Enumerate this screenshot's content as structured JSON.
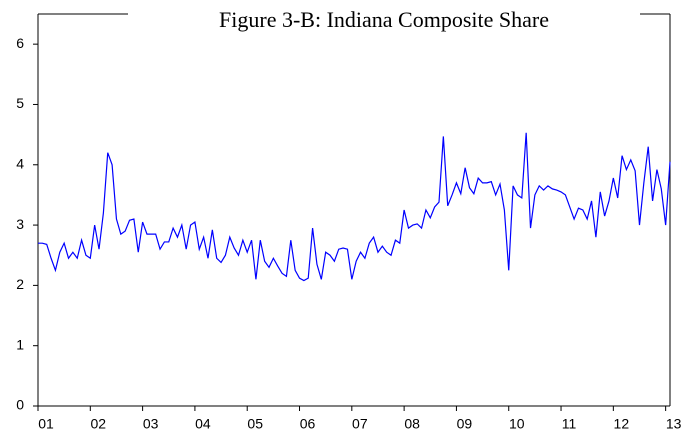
{
  "chart_data": {
    "type": "line",
    "title": "Figure 3-B: Indiana Composite Share",
    "categories": [
      "01",
      null,
      null,
      null,
      null,
      null,
      null,
      null,
      null,
      null,
      null,
      null,
      "02",
      null,
      null,
      null,
      null,
      null,
      null,
      null,
      null,
      null,
      null,
      null,
      "03",
      null,
      null,
      null,
      null,
      null,
      null,
      null,
      null,
      null,
      null,
      null,
      "04",
      null,
      null,
      null,
      null,
      null,
      null,
      null,
      null,
      null,
      null,
      null,
      "05",
      null,
      null,
      null,
      null,
      null,
      null,
      null,
      null,
      null,
      null,
      null,
      "06",
      null,
      null,
      null,
      null,
      null,
      null,
      null,
      null,
      null,
      null,
      null,
      "07",
      null,
      null,
      null,
      null,
      null,
      null,
      null,
      null,
      null,
      null,
      null,
      "08",
      null,
      null,
      null,
      null,
      null,
      null,
      null,
      null,
      null,
      null,
      null,
      "09",
      null,
      null,
      null,
      null,
      null,
      null,
      null,
      null,
      null,
      null,
      null,
      "10",
      null,
      null,
      null,
      null,
      null,
      null,
      null,
      null,
      null,
      null,
      null,
      "11",
      null,
      null,
      null,
      null,
      null,
      null,
      null,
      null,
      null,
      null,
      null,
      "12",
      null,
      null,
      null,
      null,
      null,
      null,
      null,
      null,
      null,
      null,
      null,
      "13",
      null
    ],
    "values": [
      2.7,
      2.7,
      2.68,
      2.45,
      2.25,
      2.55,
      2.7,
      2.45,
      2.55,
      2.45,
      2.75,
      2.5,
      2.45,
      3.0,
      2.6,
      3.2,
      4.2,
      4.0,
      3.1,
      2.85,
      2.9,
      3.08,
      3.1,
      2.55,
      3.05,
      2.85,
      2.85,
      2.85,
      2.6,
      2.72,
      2.72,
      2.95,
      2.8,
      3.0,
      2.6,
      3.0,
      3.05,
      2.6,
      2.8,
      2.45,
      2.92,
      2.45,
      2.38,
      2.5,
      2.8,
      2.62,
      2.5,
      2.75,
      2.55,
      2.75,
      2.1,
      2.75,
      2.4,
      2.3,
      2.45,
      2.32,
      2.2,
      2.15,
      2.75,
      2.25,
      2.12,
      2.08,
      2.12,
      2.95,
      2.35,
      2.1,
      2.55,
      2.5,
      2.4,
      2.6,
      2.62,
      2.6,
      2.1,
      2.4,
      2.55,
      2.45,
      2.7,
      2.8,
      2.55,
      2.65,
      2.55,
      2.5,
      2.75,
      2.7,
      3.25,
      2.95,
      3.0,
      3.02,
      2.95,
      3.25,
      3.12,
      3.3,
      3.38,
      4.47,
      3.32,
      3.5,
      3.7,
      3.52,
      3.95,
      3.62,
      3.52,
      3.78,
      3.7,
      3.7,
      3.72,
      3.5,
      3.68,
      3.25,
      2.25,
      3.65,
      3.5,
      3.45,
      4.53,
      2.95,
      3.5,
      3.65,
      3.58,
      3.65,
      3.6,
      3.58,
      3.55,
      3.5,
      3.3,
      3.1,
      3.28,
      3.25,
      3.1,
      3.4,
      2.8,
      3.55,
      3.15,
      3.4,
      3.78,
      3.45,
      4.15,
      3.92,
      4.08,
      3.9,
      3.0,
      3.7,
      4.3,
      3.4,
      3.92,
      3.6,
      3.0,
      4.05
    ],
    "color": "#0000ff",
    "ylim": [
      0,
      6.5
    ],
    "yticks": [
      0,
      1,
      2,
      3,
      4,
      5,
      6
    ],
    "grid": false
  }
}
